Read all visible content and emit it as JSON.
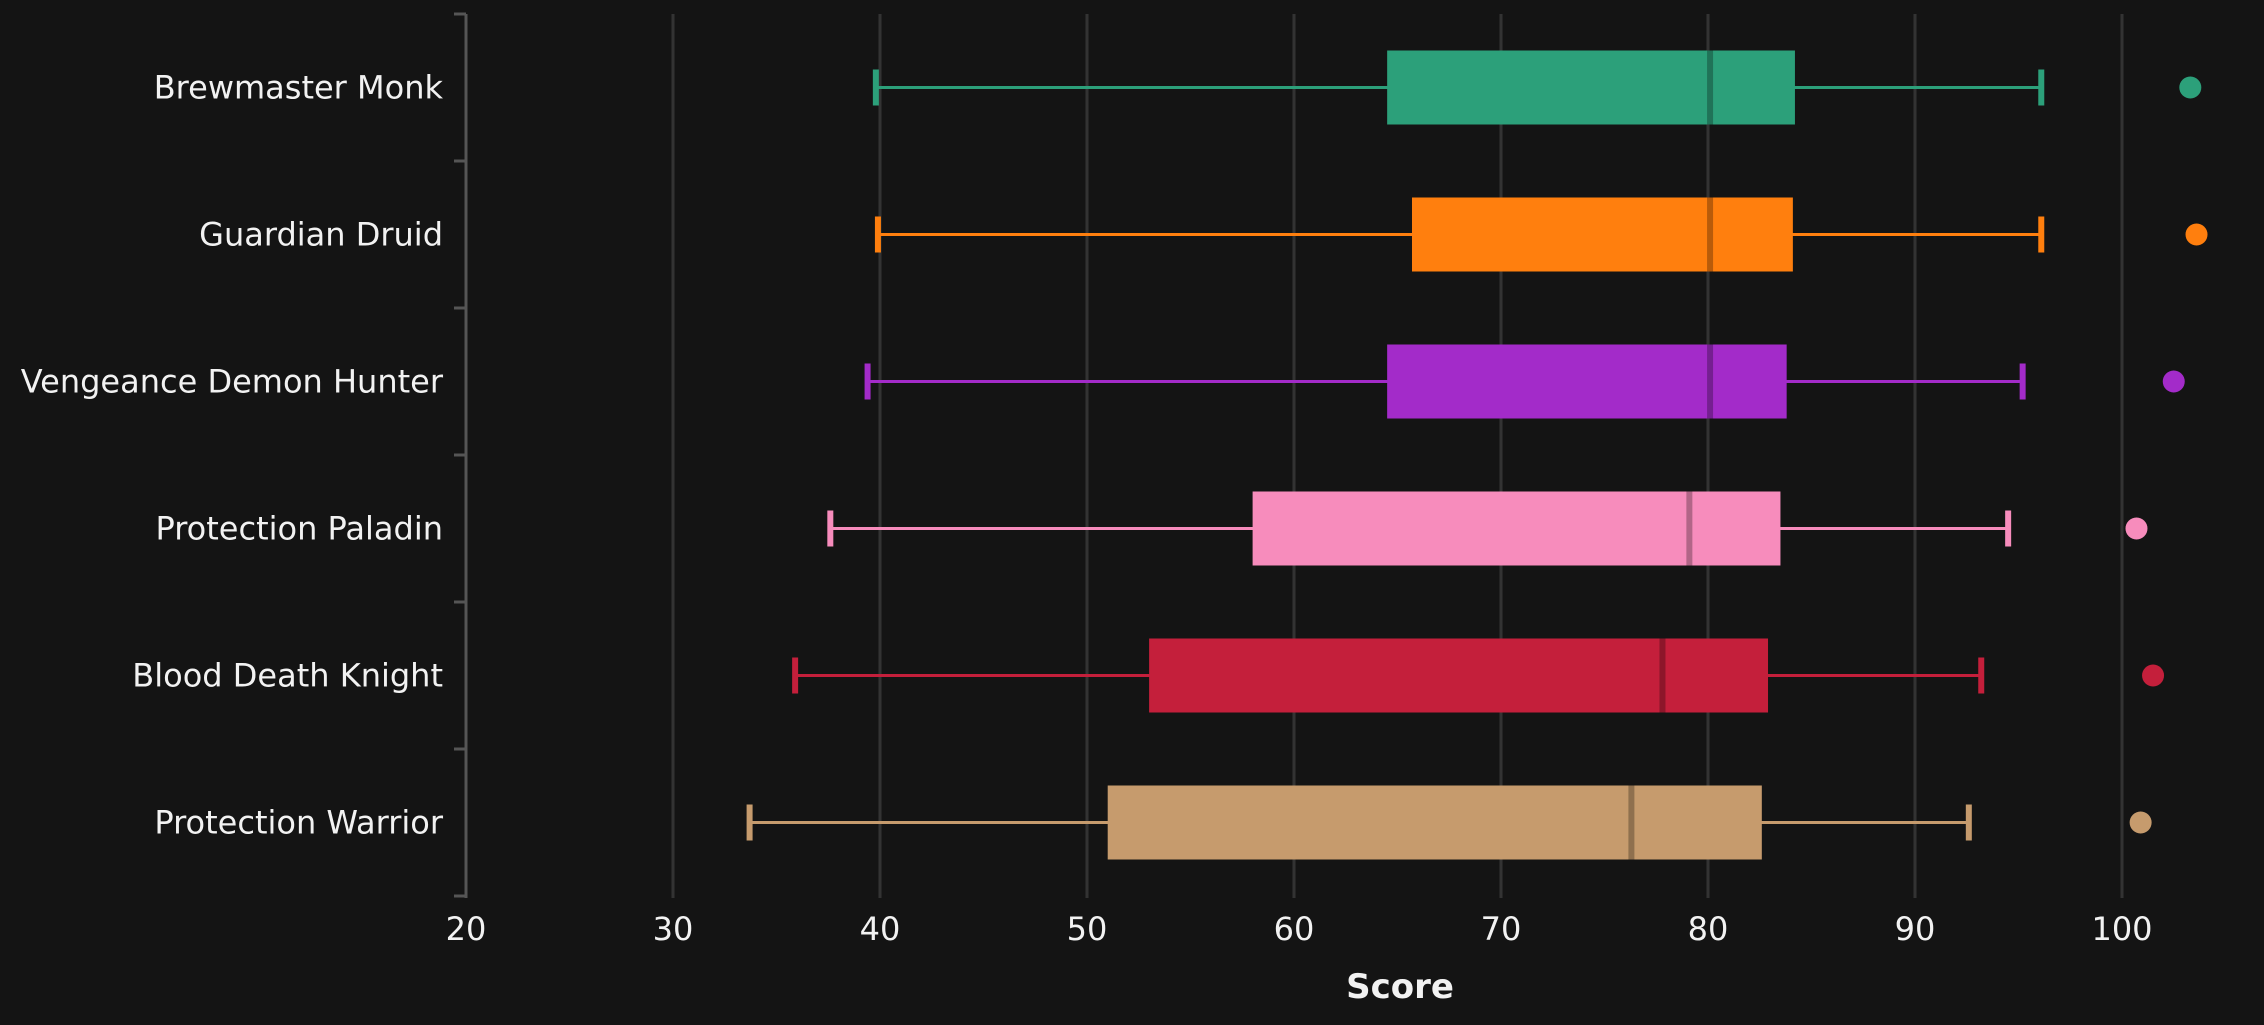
{
  "chart_data": {
    "type": "box",
    "orientation": "horizontal",
    "xlabel": "Score",
    "ylabel": "",
    "xlim": [
      20,
      104
    ],
    "xticks": [
      20,
      30,
      40,
      50,
      60,
      70,
      80,
      90,
      100
    ],
    "grid": "vertical",
    "categories": [
      "Brewmaster Monk",
      "Guardian Druid",
      "Vengeance Demon Hunter",
      "Protection Paladin",
      "Blood Death Knight",
      "Protection Warrior"
    ],
    "series": [
      {
        "category": "Brewmaster Monk",
        "color": "#2ca07a",
        "whisker_low": 39.8,
        "q1": 64.5,
        "median": 80.1,
        "q3": 84.2,
        "whisker_high": 96.1,
        "outlier": 103.3
      },
      {
        "category": "Guardian Druid",
        "color": "#ff7f0e",
        "whisker_low": 39.9,
        "q1": 65.7,
        "median": 80.1,
        "q3": 84.1,
        "whisker_high": 96.1,
        "outlier": 103.6
      },
      {
        "category": "Vengeance Demon Hunter",
        "color": "#a32bc9",
        "whisker_low": 39.4,
        "q1": 64.5,
        "median": 80.1,
        "q3": 83.8,
        "whisker_high": 95.2,
        "outlier": 102.5
      },
      {
        "category": "Protection Paladin",
        "color": "#f78cbc",
        "whisker_low": 37.6,
        "q1": 58.0,
        "median": 79.1,
        "q3": 83.5,
        "whisker_high": 94.5,
        "outlier": 100.7
      },
      {
        "category": "Blood Death Knight",
        "color": "#c41f3b",
        "whisker_low": 35.9,
        "q1": 53.0,
        "median": 77.8,
        "q3": 82.9,
        "whisker_high": 93.2,
        "outlier": 101.5
      },
      {
        "category": "Protection Warrior",
        "color": "#c69b6d",
        "whisker_low": 33.7,
        "q1": 51.0,
        "median": 76.3,
        "q3": 82.6,
        "whisker_high": 92.6,
        "outlier": 100.9
      }
    ],
    "colors": {
      "background": "#141414",
      "grid": "#333333",
      "text": "#f2f2f2"
    }
  }
}
